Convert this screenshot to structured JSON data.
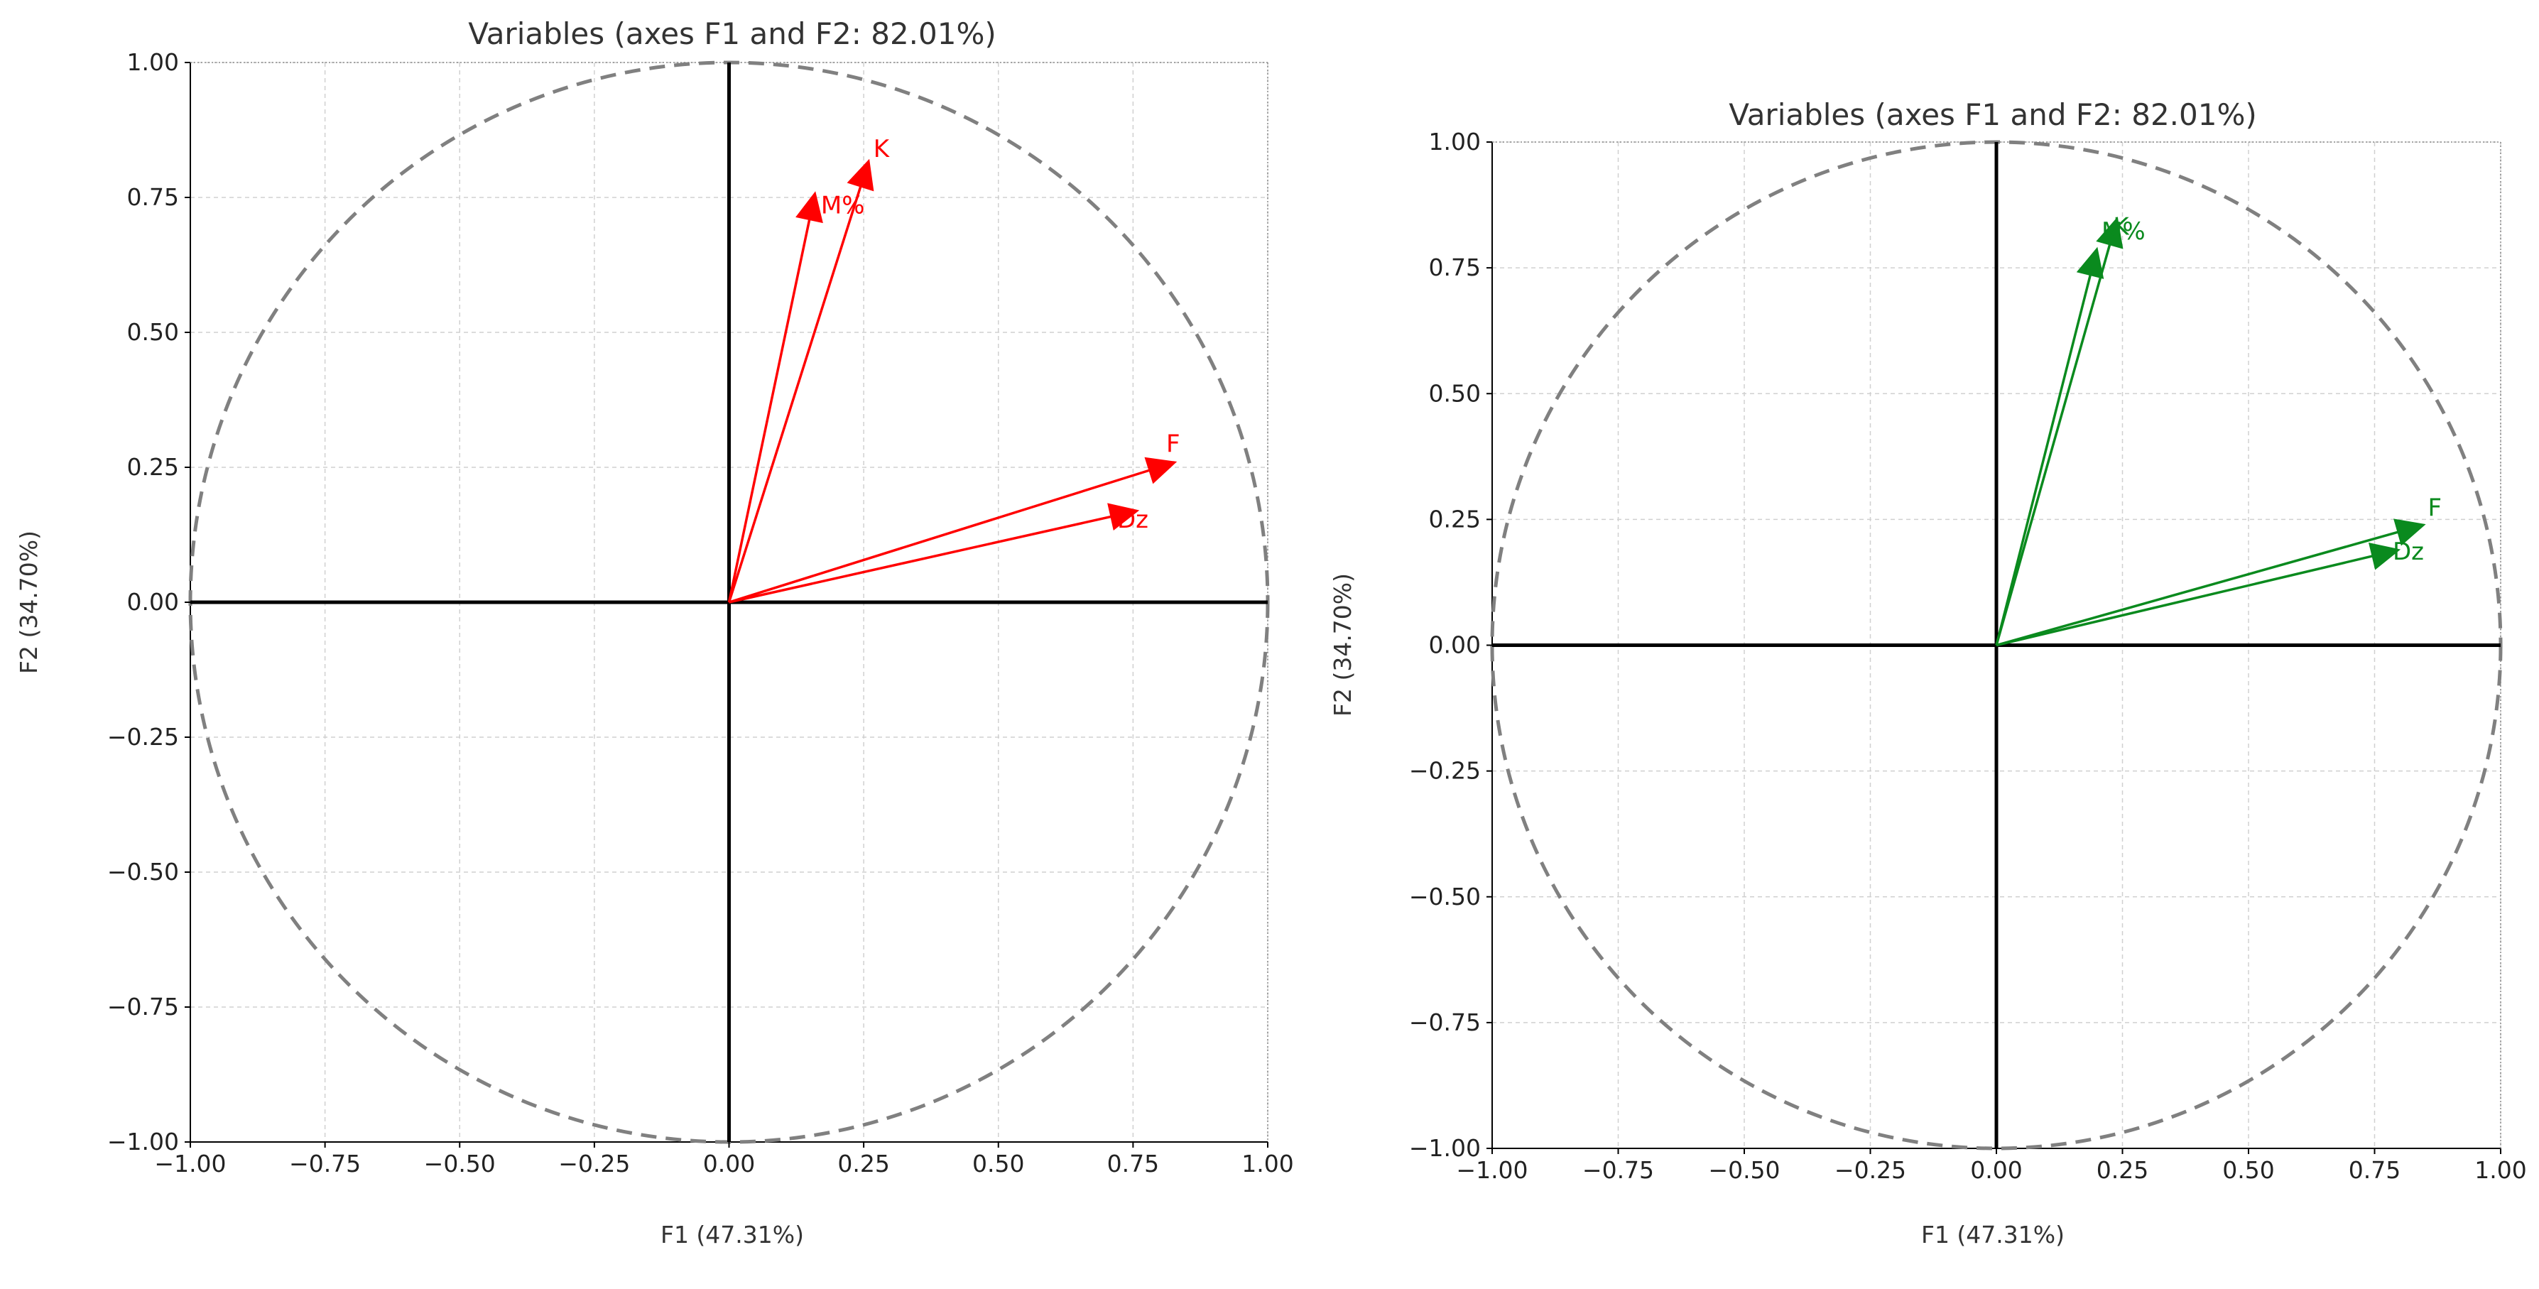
{
  "chart_data": [
    {
      "type": "scatter",
      "subtype": "correlation circle (PCA variables plot)",
      "title": "Variables (axes F1 and F2: 82.01%)",
      "xlabel": "F1 (47.31%)",
      "ylabel": "F2 (34.70%)",
      "xlim": [
        -1.0,
        1.0
      ],
      "ylim": [
        -1.0,
        1.0
      ],
      "xticks": [
        "−1.00",
        "−0.75",
        "−0.50",
        "−0.25",
        "0.00",
        "0.25",
        "0.50",
        "0.75",
        "1.00"
      ],
      "yticks": [
        "1.00",
        "0.75",
        "0.50",
        "0.25",
        "0.00",
        "−0.25",
        "−0.50",
        "−0.75",
        "−1.00"
      ],
      "grid": true,
      "unit_circle": true,
      "color": "#ff0000",
      "vectors": [
        {
          "label": "M%",
          "x": 0.16,
          "y": 0.76
        },
        {
          "label": "K",
          "x": 0.26,
          "y": 0.82
        },
        {
          "label": "F",
          "x": 0.83,
          "y": 0.26
        },
        {
          "label": "Dz",
          "x": 0.76,
          "y": 0.17
        }
      ]
    },
    {
      "type": "scatter",
      "subtype": "correlation circle (PCA variables plot)",
      "title": "Variables (axes F1 and F2: 82.01%)",
      "xlabel": "F1 (47.31%)",
      "ylabel": "F2 (34.70%)",
      "xlim": [
        -1.0,
        1.0
      ],
      "ylim": [
        -1.0,
        1.0
      ],
      "xticks": [
        "−1.00",
        "−0.75",
        "−0.50",
        "−0.25",
        "0.00",
        "0.25",
        "0.50",
        "0.75",
        "1.00"
      ],
      "yticks": [
        "1.00",
        "0.75",
        "0.50",
        "0.25",
        "0.00",
        "−0.25",
        "−0.50",
        "−0.75",
        "−1.00"
      ],
      "grid": true,
      "unit_circle": true,
      "color": "#0a8a1e",
      "vectors": [
        {
          "label": "K",
          "x": 0.24,
          "y": 0.85
        },
        {
          "label": "M%",
          "x": 0.2,
          "y": 0.79
        },
        {
          "label": "F",
          "x": 0.85,
          "y": 0.24
        },
        {
          "label": "Dz",
          "x": 0.8,
          "y": 0.19
        }
      ]
    }
  ]
}
